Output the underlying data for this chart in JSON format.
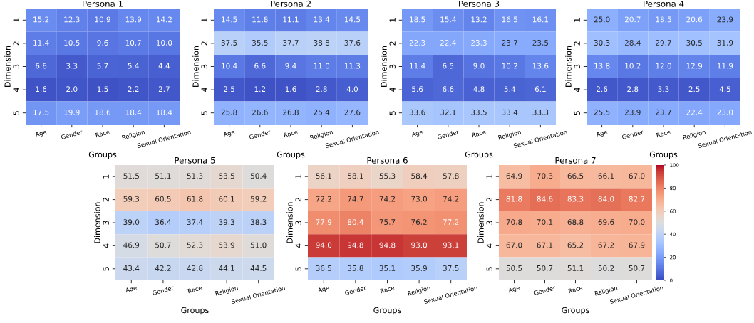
{
  "chart_data": [
    {
      "type": "heatmap",
      "title": "Persona 1",
      "xlabel": "Groups",
      "ylabel": "Dimension",
      "categories": [
        "Age",
        "Gender",
        "Race",
        "Religion",
        "Sexual Orientation"
      ],
      "y_categories": [
        "1",
        "2",
        "3",
        "4",
        "5"
      ],
      "data_labels": true,
      "cells": [
        [
          15.2,
          12.3,
          10.9,
          13.9,
          14.2
        ],
        [
          11.4,
          10.5,
          9.6,
          10.7,
          10.0
        ],
        [
          6.6,
          3.3,
          5.7,
          5.4,
          4.4
        ],
        [
          1.6,
          2.0,
          1.5,
          2.2,
          2.7
        ],
        [
          17.5,
          19.9,
          18.6,
          18.4,
          18.4
        ]
      ],
      "cell_labels": [
        [
          "15.2",
          "12.3",
          "10.9",
          "13.9",
          "14.2"
        ],
        [
          "11.4",
          "10.5",
          "9.6",
          "10.7",
          "10.0"
        ],
        [
          "6.6",
          "3.3",
          "5.7",
          "5.4",
          "4.4"
        ],
        [
          "1.6",
          "2.0",
          "1.5",
          "2.2",
          "2.7"
        ],
        [
          "17.5",
          "19.9",
          "18.6",
          "18.4",
          "18.4"
        ]
      ]
    },
    {
      "type": "heatmap",
      "title": "Persona 2",
      "xlabel": "Groups",
      "ylabel": "Dimension",
      "categories": [
        "Age",
        "Gender",
        "Race",
        "Religion",
        "Sexual Orientation"
      ],
      "y_categories": [
        "1",
        "2",
        "3",
        "4",
        "5"
      ],
      "data_labels": true,
      "cells": [
        [
          14.5,
          11.8,
          11.1,
          13.4,
          14.5
        ],
        [
          37.5,
          35.5,
          37.7,
          38.8,
          37.6
        ],
        [
          10.4,
          6.6,
          9.4,
          11.0,
          11.3
        ],
        [
          2.5,
          1.2,
          1.6,
          2.8,
          4.0
        ],
        [
          25.8,
          26.6,
          26.8,
          25.4,
          27.6
        ]
      ],
      "cell_labels": [
        [
          "14.5",
          "11.8",
          "11.1",
          "13.4",
          "14.5"
        ],
        [
          "37.5",
          "35.5",
          "37.7",
          "38.8",
          "37.6"
        ],
        [
          "10.4",
          "6.6",
          "9.4",
          "11.0",
          "11.3"
        ],
        [
          "2.5",
          "1.2",
          "1.6",
          "2.8",
          "4.0"
        ],
        [
          "25.8",
          "26.6",
          "26.8",
          "25.4",
          "27.6"
        ]
      ]
    },
    {
      "type": "heatmap",
      "title": "Persona 3",
      "xlabel": "Groups",
      "ylabel": "Dimension",
      "categories": [
        "Age",
        "Gender",
        "Race",
        "Religion",
        "Sexual Orientation"
      ],
      "y_categories": [
        "1",
        "2",
        "3",
        "4",
        "5"
      ],
      "data_labels": true,
      "cells": [
        [
          18.5,
          15.4,
          13.2,
          16.5,
          16.1
        ],
        [
          22.3,
          22.4,
          23.3,
          23.7,
          23.5
        ],
        [
          11.4,
          6.5,
          9.0,
          10.2,
          13.6
        ],
        [
          5.6,
          6.6,
          4.8,
          5.4,
          6.1
        ],
        [
          33.6,
          32.1,
          33.5,
          33.4,
          33.3
        ]
      ],
      "cell_labels": [
        [
          "18.5",
          "15.4",
          "13.2",
          "16.5",
          "16.1"
        ],
        [
          "22.3",
          "22.4",
          "23.3",
          "23.7",
          "23.5"
        ],
        [
          "11.4",
          "6.5",
          "9.0",
          "10.2",
          "13.6"
        ],
        [
          "5.6",
          "6.6",
          "4.8",
          "5.4",
          "6.1"
        ],
        [
          "33.6",
          "32.1",
          "33.5",
          "33.4",
          "33.3"
        ]
      ]
    },
    {
      "type": "heatmap",
      "title": "Persona 4",
      "xlabel": "Groups",
      "ylabel": "Dimension",
      "categories": [
        "Age",
        "Gender",
        "Race",
        "Religion",
        "Sexual Orientation"
      ],
      "y_categories": [
        "1",
        "2",
        "3",
        "4",
        "5"
      ],
      "data_labels": true,
      "cells": [
        [
          25.0,
          20.7,
          18.5,
          20.6,
          23.9
        ],
        [
          30.3,
          28.4,
          29.7,
          30.5,
          31.9
        ],
        [
          13.8,
          10.2,
          12.0,
          12.9,
          11.9
        ],
        [
          2.6,
          2.8,
          3.3,
          2.5,
          4.5
        ],
        [
          25.5,
          23.9,
          23.7,
          22.4,
          23.0
        ]
      ],
      "cell_labels": [
        [
          "25.0",
          "20.7",
          "18.5",
          "20.6",
          "23.9"
        ],
        [
          "30.3",
          "28.4",
          "29.7",
          "30.5",
          "31.9"
        ],
        [
          "13.8",
          "10.2",
          "12.0",
          "12.9",
          "11.9"
        ],
        [
          "2.6",
          "2.8",
          "3.3",
          "2.5",
          "4.5"
        ],
        [
          "25.5",
          "23.9",
          "23.7",
          "22.4",
          "23.0"
        ]
      ]
    },
    {
      "type": "heatmap",
      "title": "Persona 5",
      "xlabel": "Groups",
      "ylabel": "Dimension",
      "categories": [
        "Age",
        "Gender",
        "Race",
        "Religion",
        "Sexual Orientation"
      ],
      "y_categories": [
        "1",
        "2",
        "3",
        "4",
        "5"
      ],
      "data_labels": true,
      "cells": [
        [
          51.5,
          51.1,
          51.3,
          53.5,
          50.4
        ],
        [
          59.3,
          60.5,
          61.8,
          60.1,
          59.2
        ],
        [
          39.0,
          36.4,
          37.4,
          39.3,
          38.3
        ],
        [
          46.9,
          50.7,
          52.3,
          53.9,
          51.0
        ],
        [
          43.4,
          42.2,
          42.8,
          44.1,
          44.5
        ]
      ],
      "cell_labels": [
        [
          "51.5",
          "51.1",
          "51.3",
          "53.5",
          "50.4"
        ],
        [
          "59.3",
          "60.5",
          "61.8",
          "60.1",
          "59.2"
        ],
        [
          "39.0",
          "36.4",
          "37.4",
          "39.3",
          "38.3"
        ],
        [
          "46.9",
          "50.7",
          "52.3",
          "53.9",
          "51.0"
        ],
        [
          "43.4",
          "42.2",
          "42.8",
          "44.1",
          "44.5"
        ]
      ]
    },
    {
      "type": "heatmap",
      "title": "Persona 6",
      "xlabel": "Groups",
      "ylabel": "Dimension",
      "categories": [
        "Age",
        "Gender",
        "Race",
        "Religion",
        "Sexual Orientation"
      ],
      "y_categories": [
        "1",
        "2",
        "3",
        "4",
        "5"
      ],
      "data_labels": true,
      "cells": [
        [
          56.1,
          58.1,
          55.3,
          58.4,
          57.8
        ],
        [
          72.2,
          74.7,
          74.2,
          73.0,
          74.2
        ],
        [
          77.9,
          80.4,
          75.7,
          76.2,
          77.2
        ],
        [
          94.0,
          94.8,
          94.8,
          93.0,
          93.1
        ],
        [
          36.5,
          35.8,
          35.1,
          35.9,
          37.5
        ]
      ],
      "cell_labels": [
        [
          "56.1",
          "58.1",
          "55.3",
          "58.4",
          "57.8"
        ],
        [
          "72.2",
          "74.7",
          "74.2",
          "73.0",
          "74.2"
        ],
        [
          "77.9",
          "80.4",
          "75.7",
          "76.2",
          "77.2"
        ],
        [
          "94.0",
          "94.8",
          "94.8",
          "93.0",
          "93.1"
        ],
        [
          "36.5",
          "35.8",
          "35.1",
          "35.9",
          "37.5"
        ]
      ]
    },
    {
      "type": "heatmap",
      "title": "Persona 7",
      "xlabel": "Groups",
      "ylabel": "Dimension",
      "categories": [
        "Age",
        "Gender",
        "Race",
        "Religion",
        "Sexual Orientation"
      ],
      "y_categories": [
        "1",
        "2",
        "3",
        "4",
        "5"
      ],
      "clim": [
        0,
        100
      ],
      "cticks": [
        0,
        20,
        40,
        60,
        80,
        100
      ],
      "data_labels": true,
      "cells": [
        [
          64.9,
          70.3,
          66.5,
          66.1,
          67.0
        ],
        [
          81.8,
          84.6,
          83.3,
          84.0,
          82.7
        ],
        [
          70.8,
          70.1,
          68.8,
          69.6,
          70.0
        ],
        [
          67.0,
          67.1,
          65.2,
          67.2,
          67.9
        ],
        [
          50.5,
          50.7,
          51.1,
          50.2,
          50.7
        ]
      ],
      "cell_labels": [
        [
          "64.9",
          "70.3",
          "66.5",
          "66.1",
          "67.0"
        ],
        [
          "81.8",
          "84.6",
          "83.3",
          "84.0",
          "82.7"
        ],
        [
          "70.8",
          "70.1",
          "68.8",
          "69.6",
          "70.0"
        ],
        [
          "67.0",
          "67.1",
          "65.2",
          "67.2",
          "67.9"
        ],
        [
          "50.5",
          "50.7",
          "51.1",
          "50.2",
          "50.7"
        ]
      ]
    }
  ]
}
